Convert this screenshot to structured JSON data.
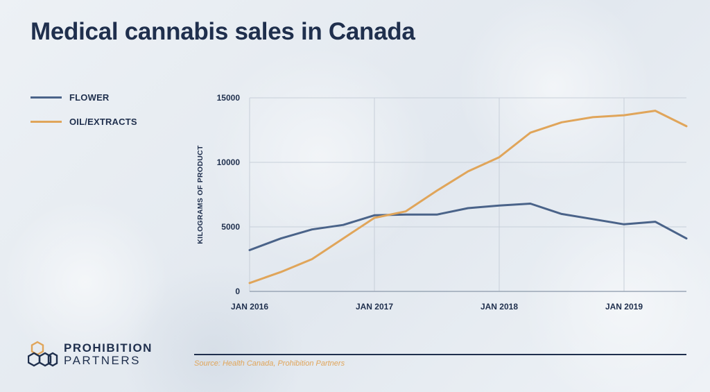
{
  "title": "Medical cannabis sales in Canada",
  "source": "Source: Health Canada, Prohibition Partners",
  "logo": {
    "line1": "PROHIBITION",
    "line2": "PARTNERS",
    "icon": "hexagon-cluster-icon"
  },
  "colors": {
    "flower": "#4a6389",
    "oil": "#e0a55a",
    "text": "#1f2f4d",
    "grid": "#c7cfd9"
  },
  "chart_data": {
    "type": "line",
    "title": "",
    "xlabel": "",
    "ylabel": "KILOGRAMS OF PRODUCT",
    "x_tick_labels": [
      "JAN 2016",
      "JAN 2017",
      "JAN 2018",
      "JAN 2019"
    ],
    "y_tick_labels": [
      "0",
      "5000",
      "10000",
      "15000"
    ],
    "ylim": [
      0,
      15000
    ],
    "xlim": [
      "2016-01",
      "2019-07"
    ],
    "grid": true,
    "legend_placement": "left",
    "x": [
      "2016-01",
      "2016-04",
      "2016-07",
      "2016-10",
      "2017-01",
      "2017-04",
      "2017-07",
      "2017-10",
      "2018-01",
      "2018-04",
      "2018-07",
      "2018-10",
      "2019-01",
      "2019-04",
      "2019-07"
    ],
    "series": [
      {
        "name": "FLOWER",
        "color": "#4a6389",
        "values": [
          3200,
          4100,
          4800,
          5150,
          5900,
          5950,
          5950,
          6450,
          6650,
          6800,
          6000,
          5600,
          5200,
          5400,
          4100
        ]
      },
      {
        "name": "OIL/EXTRACTS",
        "color": "#e0a55a",
        "values": [
          650,
          1500,
          2500,
          4100,
          5700,
          6200,
          7800,
          9300,
          10400,
          12300,
          13100,
          13500,
          13650,
          14000,
          12800
        ]
      }
    ]
  }
}
